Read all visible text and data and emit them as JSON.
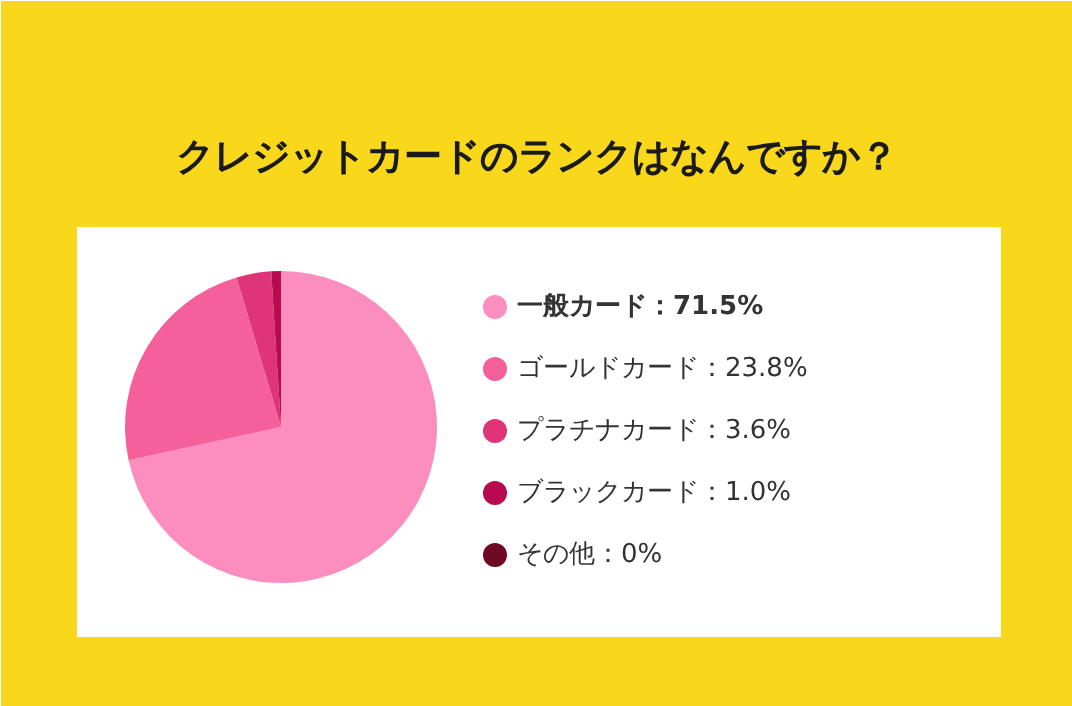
{
  "chart_data": {
    "type": "pie",
    "title": "クレジットカードのランクはなんですか？",
    "categories": [
      "一般カード",
      "ゴールドカード",
      "プラチナカード",
      "ブラックカード",
      "その他"
    ],
    "values": [
      71.5,
      23.8,
      3.6,
      1.0,
      0
    ],
    "value_labels": [
      "71.5%",
      "23.8%",
      "3.6%",
      "1.0%",
      "0%"
    ],
    "colors": [
      "#fb8dbf",
      "#f5609a",
      "#e03478",
      "#b90a4f",
      "#6e0a26"
    ],
    "legend": "right"
  }
}
